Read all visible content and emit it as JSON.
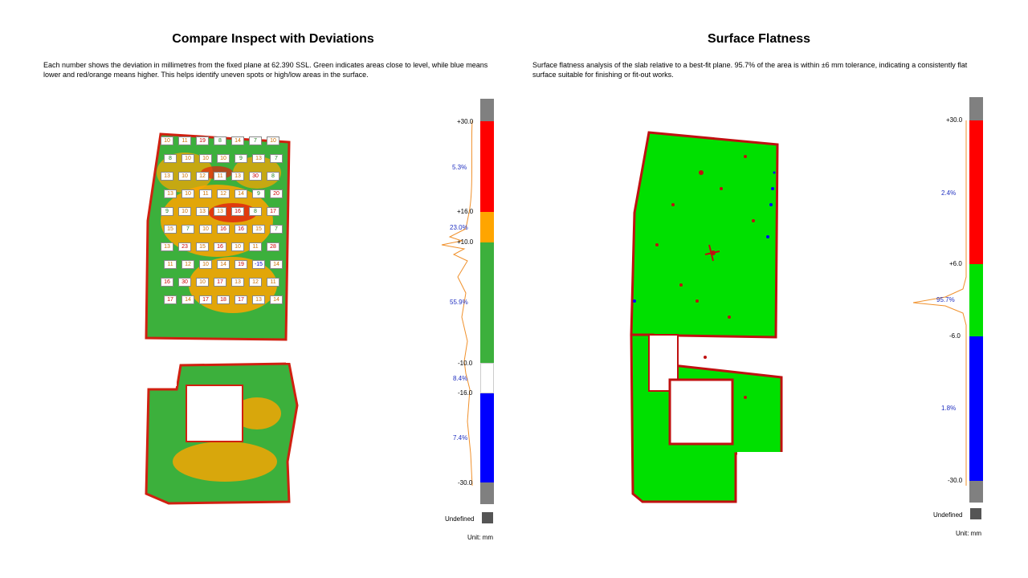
{
  "left_panel": {
    "title": "Compare Inspect with Deviations",
    "description": "Each number shows the deviation in millimetres from the fixed plane at 62.390 SSL. Green indicates areas close to level, while blue means lower and red/orange means higher. This helps identify uneven spots or high/low areas in the surface.",
    "legend": {
      "ticks": [
        "+30.0",
        "+16.0",
        "+10.0",
        "-10.0",
        "-16.0",
        "-30.0"
      ],
      "percentages": [
        "5.3%",
        "23.0%",
        "55.9%",
        "8.4%",
        "7.4%"
      ],
      "undefined_label": "Undefined",
      "unit_label": "Unit: mm",
      "colors": {
        "undefined": "#808080",
        "high": "#ff0000",
        "medium_high": "#ffa500",
        "level": "#3cb03c",
        "low": "#ffffff",
        "very_low": "#0000ff"
      }
    },
    "deviation_labels": [
      "10",
      "11",
      "19",
      "8",
      "14",
      "7",
      "10",
      "8",
      "10",
      "10",
      "10",
      "9",
      "13",
      "7",
      "13",
      "10",
      "12",
      "11",
      "13",
      "30",
      "8",
      "13",
      "10",
      "11",
      "12",
      "14",
      "9",
      "20",
      "9",
      "10",
      "13",
      "13",
      "16",
      "8",
      "17",
      "15",
      "7",
      "10",
      "16",
      "16",
      "15",
      "7",
      "13",
      "23",
      "15",
      "16",
      "10",
      "11",
      "28",
      "11",
      "12",
      "10",
      "14",
      "19",
      "-15",
      "14",
      "16",
      "30",
      "10",
      "17",
      "13",
      "12",
      "11",
      "17",
      "14",
      "17",
      "18",
      "17",
      "13",
      "14"
    ]
  },
  "right_panel": {
    "title": "Surface Flatness",
    "description": "Surface flatness analysis of the slab relative to a best-fit plane. 95.7% of the area is within ±6 mm tolerance, indicating a consistently flat surface suitable for finishing or fit-out works.",
    "legend": {
      "ticks": [
        "+30.0",
        "+6.0",
        "-6.0",
        "-30.0"
      ],
      "percentages": [
        "2.4%",
        "95.7%",
        "1.8%"
      ],
      "undefined_label": "Undefined",
      "unit_label": "Unit: mm",
      "colors": {
        "undefined": "#808080",
        "high": "#ff0000",
        "flat": "#00e000",
        "low": "#0000ff"
      }
    }
  }
}
